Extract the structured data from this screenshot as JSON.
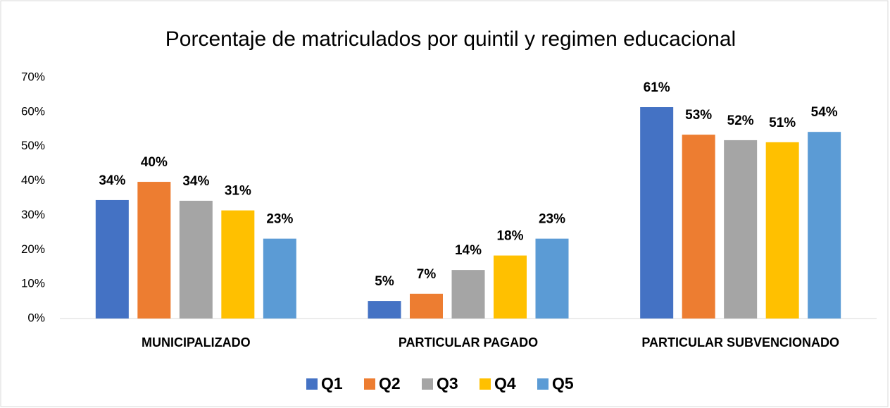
{
  "chart_data": {
    "type": "bar",
    "title": "Porcentaje de matriculados por quintil y regimen educacional",
    "categories": [
      "MUNICIPALIZADO",
      "PARTICULAR PAGADO",
      "PARTICULAR SUBVENCIONADO"
    ],
    "series": [
      {
        "name": "Q1",
        "color": "#4472c4",
        "values": [
          34.4,
          5.1,
          61.4
        ],
        "value_labels": [
          "34%",
          "5%",
          "61%"
        ]
      },
      {
        "name": "Q2",
        "color": "#ed7d31",
        "values": [
          39.7,
          7.2,
          53.4
        ],
        "value_labels": [
          "40%",
          "7%",
          "53%"
        ]
      },
      {
        "name": "Q3",
        "color": "#a5a5a5",
        "values": [
          34.2,
          14.1,
          51.8
        ],
        "value_labels": [
          "34%",
          "14%",
          "52%"
        ]
      },
      {
        "name": "Q4",
        "color": "#ffc000",
        "values": [
          31.4,
          18.3,
          51.2
        ],
        "value_labels": [
          "31%",
          "18%",
          "51%"
        ]
      },
      {
        "name": "Q5",
        "color": "#5b9bd5",
        "values": [
          23.2,
          23.2,
          54.2
        ],
        "value_labels": [
          "23%",
          "23%",
          "54%"
        ]
      }
    ],
    "ylim": [
      0,
      70
    ],
    "yticks": [
      {
        "value": 0,
        "label": "0%"
      },
      {
        "value": 10,
        "label": "10%"
      },
      {
        "value": 20,
        "label": "20%"
      },
      {
        "value": 30,
        "label": "30%"
      },
      {
        "value": 40,
        "label": "40%"
      },
      {
        "value": 50,
        "label": "50%"
      },
      {
        "value": 60,
        "label": "60%"
      },
      {
        "value": 70,
        "label": "70%"
      }
    ],
    "grid": false,
    "legend": "bottom"
  }
}
